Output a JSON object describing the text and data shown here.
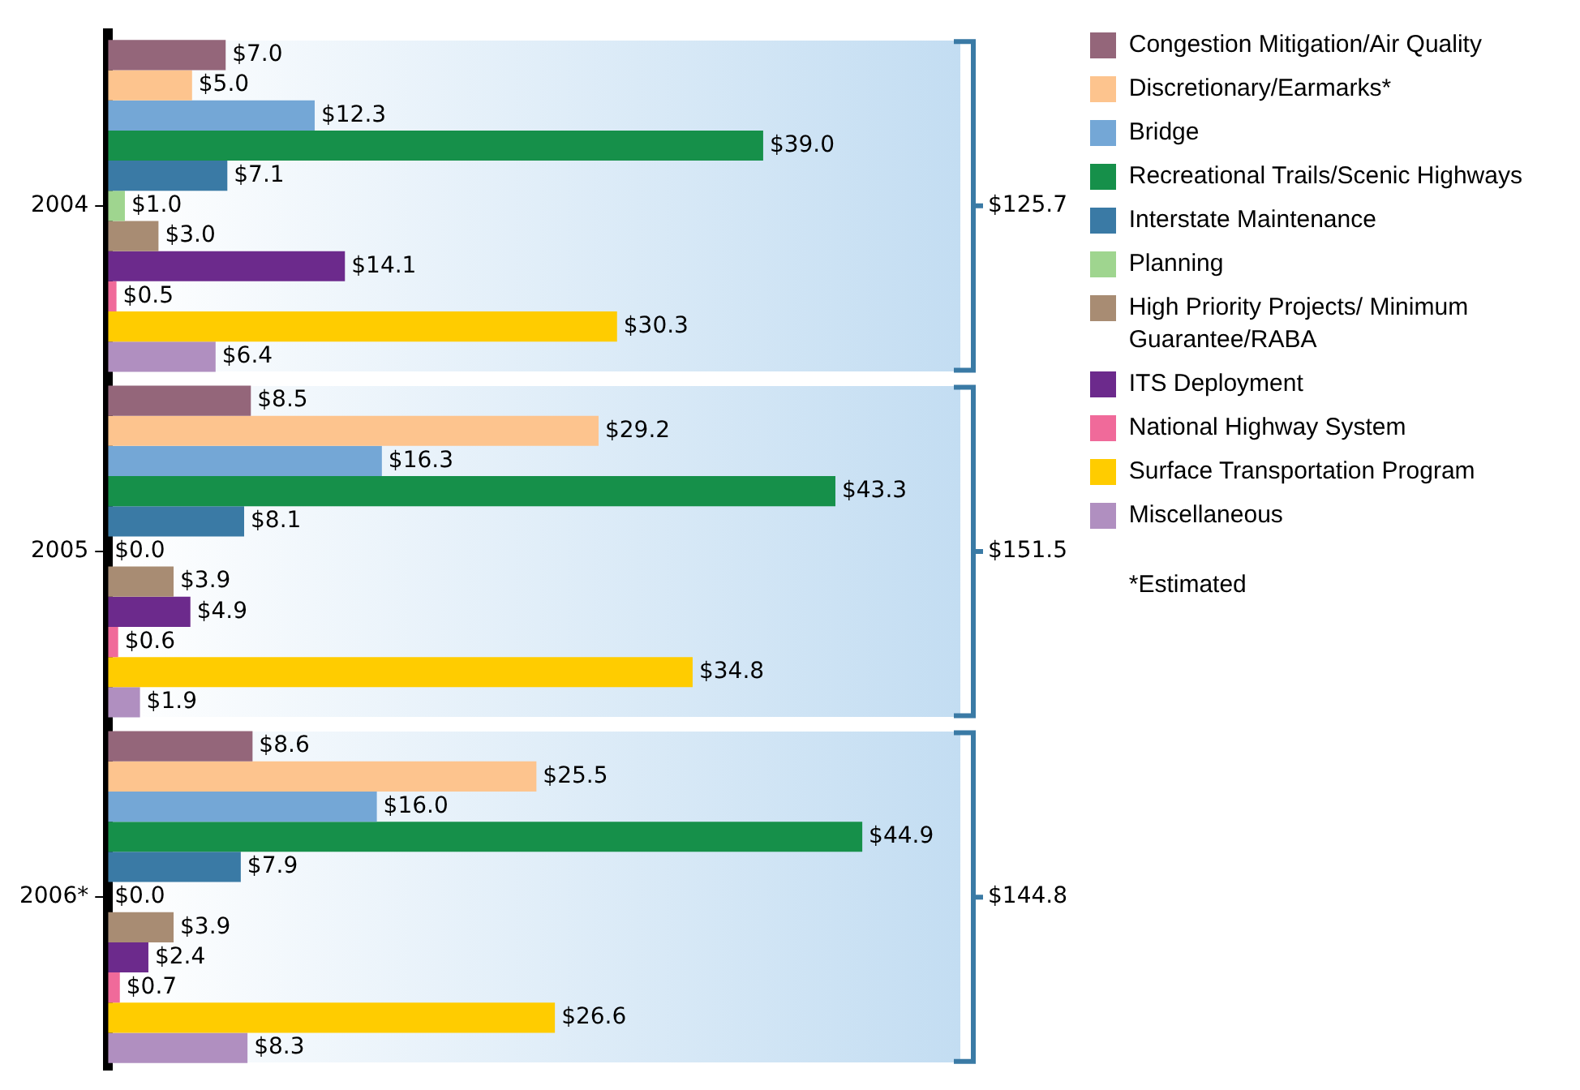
{
  "chart_data": {
    "type": "bar",
    "orientation": "horizontal",
    "categories": [
      "2004",
      "2005",
      "2006*"
    ],
    "series": [
      {
        "name": "Congestion Mitigation/Air Quality",
        "color": "#94667a",
        "values": [
          7.0,
          8.5,
          8.6
        ],
        "value_labels": [
          "$7.0",
          "$8.5",
          "$8.6"
        ]
      },
      {
        "name": "Discretionary/Earmarks*",
        "color": "#fdc48e",
        "values": [
          5.0,
          29.2,
          25.5
        ],
        "value_labels": [
          "$5.0",
          "$29.2",
          "$25.5"
        ]
      },
      {
        "name": "Bridge",
        "color": "#74a7d6",
        "values": [
          12.3,
          16.3,
          16.0
        ],
        "value_labels": [
          "$12.3",
          "$16.3",
          "$16.0"
        ]
      },
      {
        "name": "Recreational Trails/Scenic Highways",
        "color": "#16904a",
        "values": [
          39.0,
          43.3,
          44.9
        ],
        "value_labels": [
          "$39.0",
          "$43.3",
          "$44.9"
        ]
      },
      {
        "name": "Interstate Maintenance",
        "color": "#3a7aa5",
        "values": [
          7.1,
          8.1,
          7.9
        ],
        "value_labels": [
          "$7.1",
          "$8.1",
          "$7.9"
        ]
      },
      {
        "name": "Planning",
        "color": "#9fd58f",
        "values": [
          1.0,
          0.0,
          0.0
        ],
        "value_labels": [
          "$1.0",
          "$0.0",
          "$0.0"
        ]
      },
      {
        "name": "High Priority Projects/ Minimum Guarantee/RABA",
        "color": "#a88c73",
        "values": [
          3.0,
          3.9,
          3.9
        ],
        "value_labels": [
          "$3.0",
          "$3.9",
          "$3.9"
        ]
      },
      {
        "name": "ITS Deployment",
        "color": "#6c2a8c",
        "values": [
          14.1,
          4.9,
          2.4
        ],
        "value_labels": [
          "$14.1",
          "$4.9",
          "$2.4"
        ]
      },
      {
        "name": "National Highway System",
        "color": "#f06a9a",
        "values": [
          0.5,
          0.6,
          0.7
        ],
        "value_labels": [
          "$0.5",
          "$0.6",
          "$0.7"
        ]
      },
      {
        "name": "Surface Transportation Program",
        "color": "#ffcc00",
        "values": [
          30.3,
          34.8,
          26.6
        ],
        "value_labels": [
          "$30.3",
          "$34.8",
          "$26.6"
        ]
      },
      {
        "name": "Miscellaneous",
        "color": "#b08fc0",
        "values": [
          6.4,
          1.9,
          8.3
        ],
        "value_labels": [
          "$6.4",
          "$1.9",
          "$8.3"
        ]
      }
    ],
    "annotations": [
      "$125.7",
      "$151.5",
      "$144.8",
      "*Estimated"
    ],
    "legend": "right",
    "tick_labels": "y"
  }
}
